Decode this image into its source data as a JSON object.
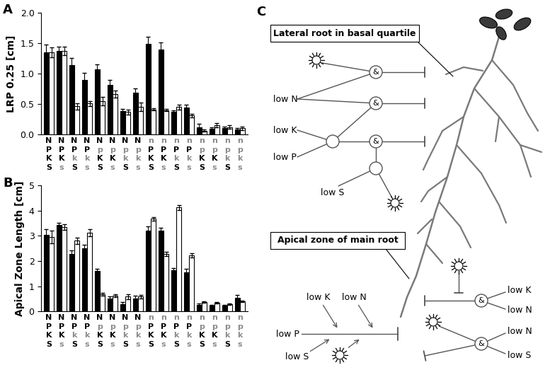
{
  "chart_data": [
    {
      "type": "bar",
      "panel_label": "A",
      "y_label": "LRP 0.25 [cm]",
      "categories": [
        "NPKS",
        "NPKs",
        "NPkS",
        "NPks",
        "NpKS",
        "NpKs",
        "NpkS",
        "Npks",
        "nPKS",
        "nPKs",
        "nPkS",
        "nPks",
        "npKS",
        "npKs",
        "npkS",
        "npks"
      ],
      "series": [
        {
          "color": "#000000",
          "values": [
            1.35,
            1.37,
            1.14,
            0.89,
            1.07,
            0.81,
            0.38,
            0.69,
            1.49,
            1.4,
            0.37,
            0.44,
            0.12,
            0.09,
            0.1,
            0.08
          ],
          "errors": [
            0.13,
            0.07,
            0.12,
            0.12,
            0.08,
            0.09,
            0.04,
            0.06,
            0.11,
            0.11,
            0.03,
            0.05,
            0.05,
            0.03,
            0.03,
            0.02
          ]
        },
        {
          "color": "#ffffff",
          "values": [
            1.35,
            1.37,
            0.46,
            0.51,
            0.55,
            0.66,
            0.37,
            0.45,
            0.41,
            0.4,
            0.45,
            0.31,
            0.06,
            0.15,
            0.12,
            0.1
          ],
          "errors": [
            0.08,
            0.07,
            0.05,
            0.04,
            0.07,
            0.06,
            0.04,
            0.07,
            0.02,
            0.02,
            0.04,
            0.03,
            0.02,
            0.04,
            0.03,
            0.03
          ]
        }
      ],
      "ylim": [
        0,
        2
      ],
      "yticks": [
        {
          "value": 0,
          "label": "0.0"
        },
        {
          "value": 0.5,
          "label": "0.5"
        },
        {
          "value": 1,
          "label": "1.0"
        },
        {
          "value": 1.5,
          "label": "1.5"
        },
        {
          "value": 2,
          "label": "2.0"
        }
      ]
    },
    {
      "type": "bar",
      "panel_label": "B",
      "y_label": "Apical Zone Length [cm]",
      "categories": [
        "NPKS",
        "NPKs",
        "NPkS",
        "NPks",
        "NpKS",
        "NpKs",
        "NpkS",
        "Npks",
        "nPKS",
        "nPKs",
        "nPkS",
        "nPks",
        "npKS",
        "npKs",
        "npkS",
        "npks"
      ],
      "series": [
        {
          "color": "#000000",
          "values": [
            3.05,
            3.42,
            2.28,
            2.5,
            1.6,
            0.52,
            0.28,
            0.52,
            3.22,
            3.2,
            1.63,
            1.55,
            0.25,
            0.22,
            0.22,
            0.55
          ],
          "errors": [
            0.2,
            0.1,
            0.15,
            0.15,
            0.08,
            0.08,
            0.08,
            0.1,
            0.15,
            0.12,
            0.1,
            0.15,
            0.05,
            0.03,
            0.03,
            0.1
          ]
        },
        {
          "color": "#ffffff",
          "values": [
            2.95,
            3.35,
            2.8,
            3.12,
            0.68,
            0.62,
            0.58,
            0.58,
            3.68,
            2.28,
            4.12,
            2.22,
            0.38,
            0.33,
            0.28,
            0.4
          ],
          "errors": [
            0.25,
            0.12,
            0.12,
            0.15,
            0.06,
            0.06,
            0.1,
            0.08,
            0.07,
            0.08,
            0.1,
            0.08,
            0.03,
            0.03,
            0.03,
            0.03
          ]
        }
      ],
      "ylim": [
        0,
        5
      ],
      "yticks": [
        0,
        1,
        2,
        3,
        4,
        5
      ]
    }
  ],
  "diagram": {
    "panel_label": "C",
    "lateral_root": {
      "title": "Lateral root in basal quartile",
      "inputs": [
        "low N",
        "low K",
        "low P",
        "low S"
      ],
      "gates": [
        "&",
        "&",
        "&"
      ]
    },
    "apical_zone": {
      "title": "Apical zone of main root",
      "main_input": "low P",
      "modifiers": [
        "low K",
        "low N",
        "low S"
      ],
      "gates": [
        {
          "label": "&",
          "inputs": [
            "low K",
            "low N"
          ]
        },
        {
          "label": "&",
          "inputs": [
            "low N",
            "low S"
          ]
        }
      ]
    }
  }
}
